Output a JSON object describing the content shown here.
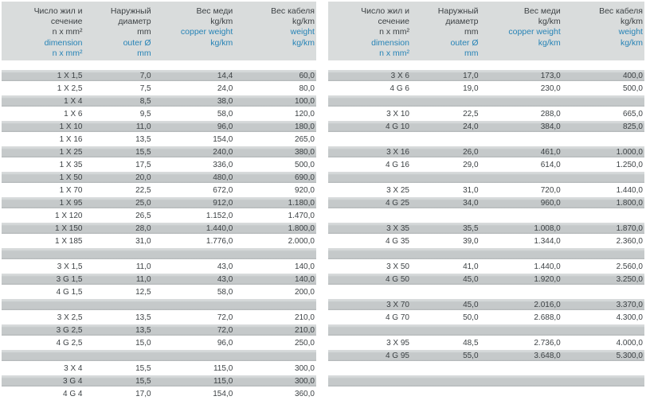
{
  "colors": {
    "header_background": "#d9dcdc",
    "row_gray": "#c5c9ca",
    "text_dark": "#3d4245",
    "text_blue": "#2683b6",
    "page_background": "#ffffff"
  },
  "header_columns": [
    {
      "key": "dimension",
      "primary": [
        "Число жил и",
        "сечение",
        "n x mm²"
      ],
      "secondary": [
        "dimension",
        "n x mm²"
      ]
    },
    {
      "key": "outer-diameter",
      "primary": [
        "Наружный",
        "диаметр",
        "mm"
      ],
      "secondary": [
        "outer Ø",
        "mm"
      ]
    },
    {
      "key": "copper-weight",
      "primary": [
        "Вес меди",
        "kg/km"
      ],
      "secondary": [
        "copper weight",
        "kg/km"
      ]
    },
    {
      "key": "cable-weight",
      "primary": [
        "Вес кабеля",
        "kg/km"
      ],
      "secondary": [
        "weight",
        "kg/km"
      ]
    }
  ],
  "left_table": {
    "rows": [
      [
        "1 X 1,5",
        "7,0",
        "14,4",
        "60,0"
      ],
      [
        "1 X 2,5",
        "7,5",
        "24,0",
        "80,0"
      ],
      [
        "1 X 4",
        "8,5",
        "38,0",
        "100,0"
      ],
      [
        "1 X 6",
        "9,5",
        "58,0",
        "120,0"
      ],
      [
        "1 X 10",
        "11,0",
        "96,0",
        "180,0"
      ],
      [
        "1 X 16",
        "13,5",
        "154,0",
        "265,0"
      ],
      [
        "1 X 25",
        "15,5",
        "240,0",
        "380,0"
      ],
      [
        "1 X 35",
        "17,5",
        "336,0",
        "500,0"
      ],
      [
        "1 X 50",
        "20,0",
        "480,0",
        "690,0"
      ],
      [
        "1 X 70",
        "22,5",
        "672,0",
        "920,0"
      ],
      [
        "1 X 95",
        "25,0",
        "912,0",
        "1.180,0"
      ],
      [
        "1 X 120",
        "26,5",
        "1.152,0",
        "1.470,0"
      ],
      [
        "1 X 150",
        "28,0",
        "1.440,0",
        "1.800,0"
      ],
      [
        "1 X 185",
        "31,0",
        "1.776,0",
        "2.000,0"
      ],
      [],
      [
        "3 X 1,5",
        "11,0",
        "43,0",
        "140,0"
      ],
      [
        "3 G 1,5",
        "11,0",
        "43,0",
        "140,0"
      ],
      [
        "4 G 1,5",
        "12,5",
        "58,0",
        "200,0"
      ],
      [],
      [
        "3 X 2,5",
        "13,5",
        "72,0",
        "210,0"
      ],
      [
        "3 G 2,5",
        "13,5",
        "72,0",
        "210,0"
      ],
      [
        "4 G 2,5",
        "15,0",
        "96,0",
        "250,0"
      ],
      [],
      [
        "3 X 4",
        "15,5",
        "115,0",
        "300,0"
      ],
      [
        "3 G 4",
        "15,5",
        "115,0",
        "300,0"
      ],
      [
        "4 G 4",
        "17,0",
        "154,0",
        "360,0"
      ]
    ]
  },
  "right_table": {
    "rows": [
      [
        "3 X 6",
        "17,0",
        "173,0",
        "400,0"
      ],
      [
        "4 G 6",
        "19,0",
        "230,0",
        "500,0"
      ],
      [],
      [
        "3 X 10",
        "22,5",
        "288,0",
        "665,0"
      ],
      [
        "4 G 10",
        "24,0",
        "384,0",
        "825,0"
      ],
      [],
      [
        "3 X 16",
        "26,0",
        "461,0",
        "1.000,0"
      ],
      [
        "4 G 16",
        "29,0",
        "614,0",
        "1.250,0"
      ],
      [],
      [
        "3 X 25",
        "31,0",
        "720,0",
        "1.440,0"
      ],
      [
        "4 G 25",
        "34,0",
        "960,0",
        "1.800,0"
      ],
      [],
      [
        "3 X 35",
        "35,5",
        "1.008,0",
        "1.870,0"
      ],
      [
        "4 G 35",
        "39,0",
        "1.344,0",
        "2.360,0"
      ],
      [],
      [
        "3 X 50",
        "41,0",
        "1.440,0",
        "2.560,0"
      ],
      [
        "4 G 50",
        "45,0",
        "1.920,0",
        "3.250,0"
      ],
      [],
      [
        "3 X 70",
        "45,0",
        "2.016,0",
        "3.370,0"
      ],
      [
        "4 G 70",
        "50,0",
        "2.688,0",
        "4.300,0"
      ],
      [],
      [
        "3 X 95",
        "48,5",
        "2.736,0",
        "4.000,0"
      ],
      [
        "4 G 95",
        "55,0",
        "3.648,0",
        "5.300,0"
      ],
      [],
      [],
      []
    ]
  }
}
